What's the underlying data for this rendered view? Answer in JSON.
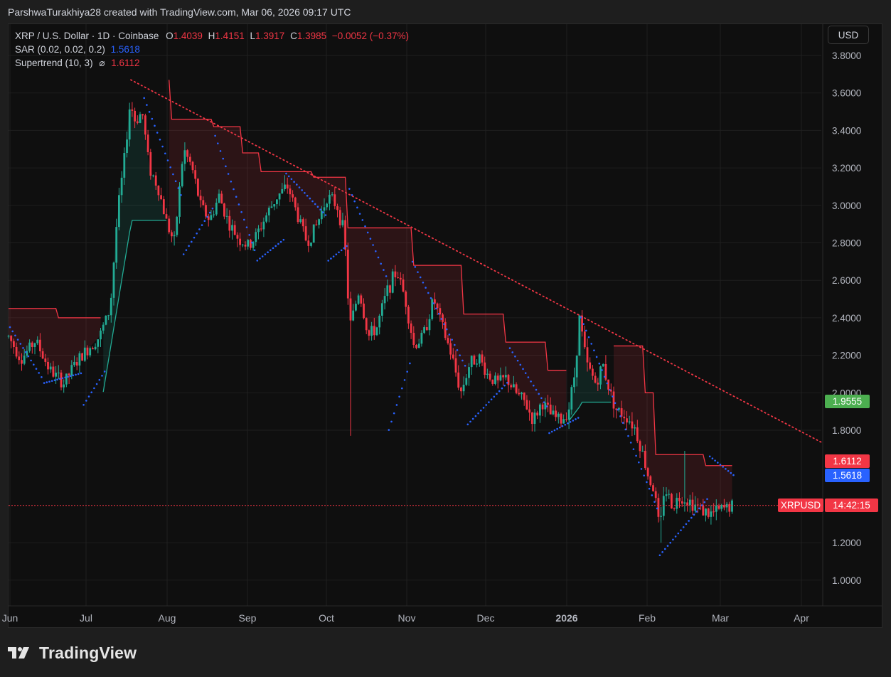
{
  "header": {
    "credit": "ParshwaTurakhiya28 created with TradingView.com, Mar 06, 2026 09:17 UTC"
  },
  "legend": {
    "symbol": "XRP / U.S. Dollar · 1D · Coinbase",
    "open_label": "O",
    "open": "1.4039",
    "high_label": "H",
    "high": "1.4151",
    "low_label": "L",
    "low": "1.3917",
    "close_label": "C",
    "close": "1.3985",
    "change": "−0.0052 (−0.37%)",
    "sar_label": "SAR (0.02, 0.02, 0.2)",
    "sar_value": "1.5618",
    "supertrend_label": "Supertrend (10, 3)",
    "supertrend_symbol": "⌀",
    "supertrend_value": "1.6112"
  },
  "currency_button": "USD",
  "price_tags": {
    "green_level": "1.9555",
    "supertrend": "1.6112",
    "sar": "1.5618",
    "symbol_tag": "XRPUSD",
    "countdown": "14:42:15"
  },
  "footer": {
    "brand": "TradingView"
  },
  "colors": {
    "background": "#0f0f0f",
    "up": "#22ab94",
    "down": "#f23645",
    "sar": "#2962ff",
    "supertrend_up": "#22ab94",
    "supertrend_down": "#f23645",
    "green_tag": "#4caf50",
    "grid": "#1f1f1f"
  },
  "chart_data": {
    "type": "candlestick",
    "title": "XRP / U.S. Dollar · 1D · Coinbase",
    "y_ticks": [
      "3.8000",
      "3.6000",
      "3.4000",
      "3.2000",
      "3.0000",
      "2.8000",
      "2.6000",
      "2.4000",
      "2.2000",
      "2.0000",
      "1.8000",
      "1.2000",
      "1.0000"
    ],
    "x_ticks": [
      "Jun",
      "Jul",
      "Aug",
      "Sep",
      "Oct",
      "Nov",
      "Dec",
      "2026",
      "Feb",
      "Mar",
      "Apr"
    ],
    "ylim": [
      0.9,
      3.85
    ],
    "price_line": 1.3985,
    "trendline": {
      "from": [
        "Jul 18",
        3.67
      ],
      "to": [
        "Apr 07",
        1.73
      ]
    },
    "candles_close_by_period": {
      "Jun": 2.15,
      "Jul_start": 2.35,
      "Jul_peak": 3.55,
      "Aug": 2.95,
      "Sep": 2.85,
      "Oct": 2.75,
      "Nov": 2.35,
      "Dec": 2.0,
      "Jan_peak": 2.4,
      "Feb": 1.4,
      "Mar": 1.3985
    },
    "supertrend_value": 1.6112,
    "sar_value": 1.5618
  }
}
